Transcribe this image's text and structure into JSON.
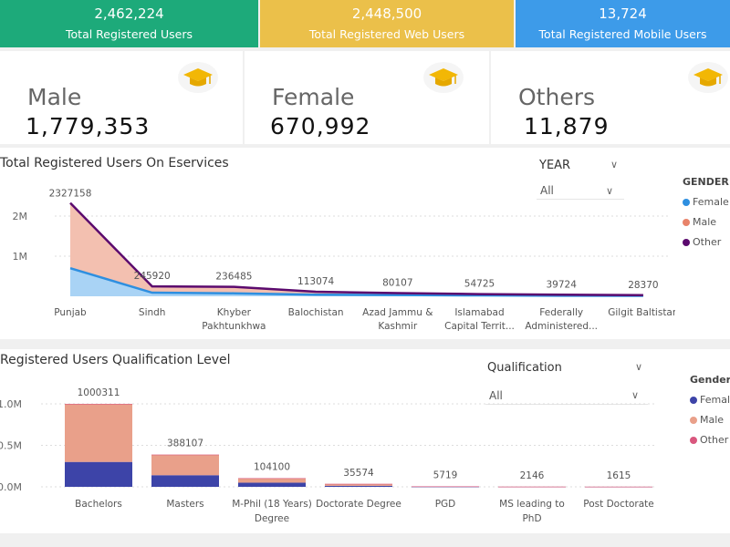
{
  "kpis": [
    {
      "value": "2,462,224",
      "label": "Total Registered Users",
      "color": "#1daa7a"
    },
    {
      "value": "2,448,500",
      "label": "Total Registered Web Users",
      "color": "#ebc04a"
    },
    {
      "value": "13,724",
      "label": "Total Registered Mobile Users",
      "color": "#3d9be9"
    }
  ],
  "gender_cards": [
    {
      "title": "Male",
      "value": "1,779,353",
      "icon": "graduation-cap-icon"
    },
    {
      "title": "Female",
      "value": "670,992",
      "icon": "graduation-cap-icon"
    },
    {
      "title": "Others",
      "value": "11,879",
      "icon": "graduation-cap-icon"
    }
  ],
  "line_panel": {
    "year_label": "YEAR",
    "year_value": "All",
    "legend_title": "GENDER"
  },
  "bar_panel": {
    "qual_label": "Qualification",
    "qual_value": "All",
    "legend_title": "Gender"
  },
  "chart_data": [
    {
      "type": "area",
      "title": "Total Registered Users On Eservices",
      "categories": [
        [
          "Punjab"
        ],
        [
          "Sindh"
        ],
        [
          "Khyber",
          "Pakhtunkhwa"
        ],
        [
          "Balochistan"
        ],
        [
          "Azad Jammu &",
          "Kashmir"
        ],
        [
          "Islamabad",
          "Capital Territ..."
        ],
        [
          "Federally",
          "Administered..."
        ],
        [
          "Gilgit Baltistan"
        ]
      ],
      "totals": [
        2327158,
        245920,
        236485,
        113074,
        80107,
        54725,
        39724,
        28370
      ],
      "series": [
        {
          "name": "Female",
          "color": "#2e8fe0",
          "values": [
            700000,
            90000,
            75000,
            40000,
            30000,
            22000,
            15000,
            12000
          ]
        },
        {
          "name": "Male",
          "color": "#e8836a",
          "values": [
            1620000,
            155000,
            160500,
            72500,
            49800,
            32400,
            24500,
            16200
          ]
        },
        {
          "name": "Other",
          "color": "#5b0a6e",
          "values": [
            7158,
            920,
            985,
            574,
            307,
            325,
            224,
            170
          ]
        }
      ],
      "yticks": [
        {
          "v": 1000000,
          "label": "1M"
        },
        {
          "v": 2000000,
          "label": "2M"
        }
      ],
      "ylim": [
        0,
        2500000
      ],
      "legend": "right"
    },
    {
      "type": "bar",
      "title": "Registered Users Qualification Level",
      "categories": [
        [
          "Bachelors"
        ],
        [
          "Masters"
        ],
        [
          "M-Phil (18 Years)",
          "Degree"
        ],
        [
          "Doctorate Degree"
        ],
        [
          "PGD"
        ],
        [
          "MS leading to",
          "PhD"
        ],
        [
          "Post Doctorate"
        ]
      ],
      "totals": [
        1000311,
        388107,
        104100,
        35574,
        5719,
        2146,
        1615
      ],
      "series": [
        {
          "name": "Female",
          "color": "#3d44a8",
          "values": [
            300000,
            140000,
            50000,
            12000,
            2000,
            800,
            500
          ]
        },
        {
          "name": "Male",
          "color": "#e9a08a",
          "values": [
            696000,
            246500,
            53500,
            23300,
            3700,
            1340,
            1110
          ]
        },
        {
          "name": "Other",
          "color": "#d9577e",
          "values": [
            4311,
            1607,
            600,
            274,
            19,
            6,
            5
          ]
        }
      ],
      "yticks": [
        {
          "v": 0,
          "label": "0.0M"
        },
        {
          "v": 500000,
          "label": "0.5M"
        },
        {
          "v": 1000000,
          "label": "1.0M"
        }
      ],
      "ylim": [
        0,
        1100000
      ],
      "legend": "right"
    }
  ]
}
